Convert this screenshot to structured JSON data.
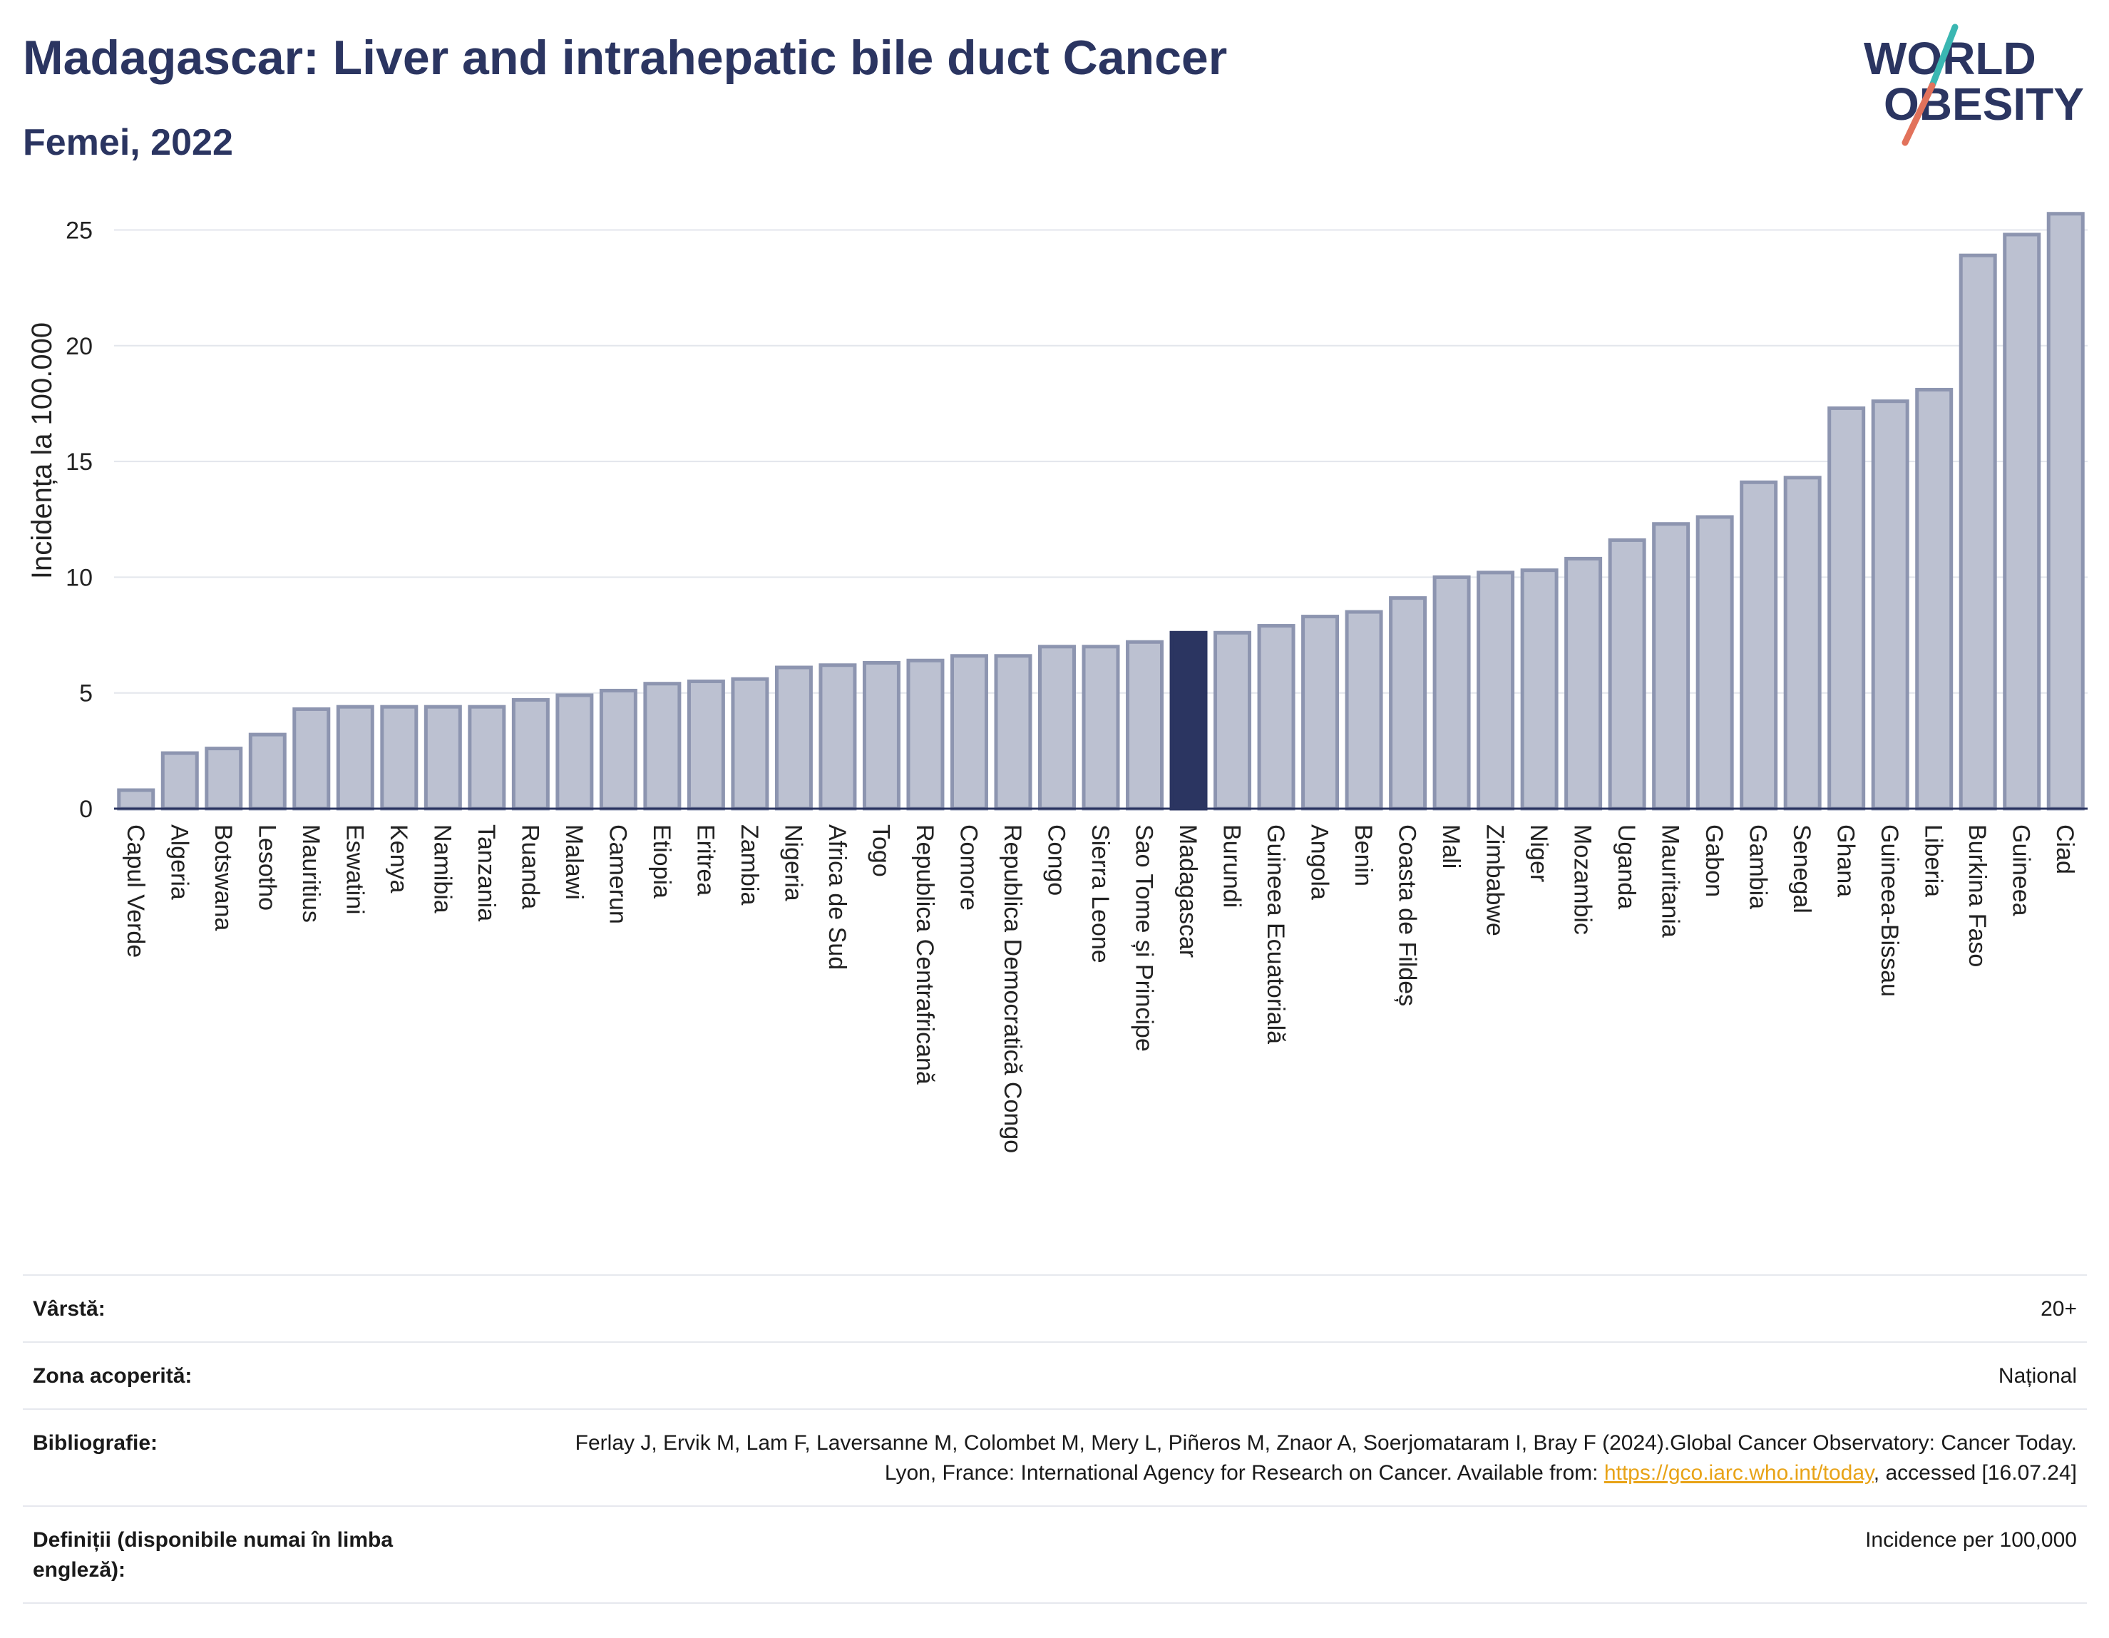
{
  "header": {
    "title": "Madagascar: Liver and intrahepatic bile duct Cancer",
    "subtitle": "Femei, 2022"
  },
  "logo": {
    "line1": "WORLD",
    "line2": "OBESITY",
    "slash_colors": [
      "#3ab7b2",
      "#e2725b"
    ]
  },
  "colors": {
    "bar": "#bcc1d1",
    "bar_border": "#8d95b0",
    "highlight": "#2b3561",
    "grid": "#e3e6ec",
    "text": "#2b3561"
  },
  "chart_data": {
    "type": "bar",
    "title": "Madagascar: Liver and intrahepatic bile duct Cancer",
    "subtitle": "Femei, 2022",
    "ylabel": "Incidența la 100.000",
    "xlabel": "",
    "ylim": [
      0,
      26
    ],
    "yticks": [
      0,
      5,
      10,
      15,
      20,
      25
    ],
    "grid": true,
    "highlight": "Madagascar",
    "categories": [
      "Capul Verde",
      "Algeria",
      "Botswana",
      "Lesotho",
      "Mauritius",
      "Eswatini",
      "Kenya",
      "Namibia",
      "Tanzania",
      "Ruanda",
      "Malawi",
      "Camerun",
      "Etiopia",
      "Eritrea",
      "Zambia",
      "Nigeria",
      "Africa de Sud",
      "Togo",
      "Republica Centrafricană",
      "Comore",
      "Republica Democratică Congo",
      "Congo",
      "Sierra Leone",
      "Sao Tome și Principe",
      "Madagascar",
      "Burundi",
      "Guineea Ecuatorială",
      "Angola",
      "Benin",
      "Coasta de Fildeș",
      "Mali",
      "Zimbabwe",
      "Niger",
      "Mozambic",
      "Uganda",
      "Mauritania",
      "Gabon",
      "Gambia",
      "Senegal",
      "Ghana",
      "Guineea-Bissau",
      "Liberia",
      "Burkina Faso",
      "Guineea",
      "Ciad"
    ],
    "values": [
      0.8,
      2.4,
      2.6,
      3.2,
      4.3,
      4.4,
      4.4,
      4.4,
      4.4,
      4.7,
      4.9,
      5.1,
      5.4,
      5.5,
      5.6,
      6.1,
      6.2,
      6.3,
      6.4,
      6.6,
      6.6,
      7.0,
      7.0,
      7.2,
      7.6,
      7.6,
      7.9,
      8.3,
      8.5,
      9.1,
      10.0,
      10.2,
      10.3,
      10.8,
      11.6,
      12.3,
      12.6,
      14.1,
      14.3,
      17.3,
      17.6,
      18.1,
      23.9,
      24.8,
      25.7
    ]
  },
  "meta": [
    {
      "label": "Vârstă:",
      "value": "20+"
    },
    {
      "label": "Zona acoperită:",
      "value": "Național"
    },
    {
      "label": "Bibliografie:",
      "value_prefix": "Ferlay J, Ervik M, Lam F, Laversanne M, Colombet M, Mery L, Piñeros M, Znaor A, Soerjomataram I, Bray F (2024).Global Cancer Observatory: Cancer Today. Lyon, France: International Agency for Research on Cancer. Available from: ",
      "link": "https://gco.iarc.who.int/today",
      "value_suffix": ", accessed [16.07.24]"
    },
    {
      "label": "Definiții (disponibile numai în limba engleză):",
      "value": "Incidence per 100,000"
    }
  ]
}
